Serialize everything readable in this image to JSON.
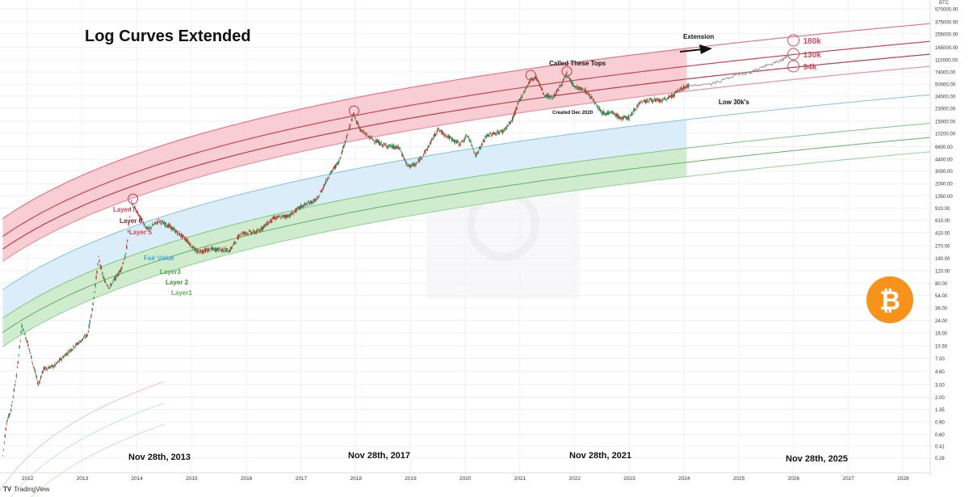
{
  "title": "Log Curves Extended",
  "footer": {
    "brand": "TradingView",
    "logo_glyph": "TV"
  },
  "axis_unit": "BTC",
  "chart_data": {
    "type": "line",
    "title": "Log Curves Extended",
    "y_scale": "log",
    "ylim": [
      0.2,
      600000
    ],
    "xlim": [
      2011.5,
      2028.5
    ],
    "x_ticks": [
      "2012",
      "2013",
      "2014",
      "2015",
      "2016",
      "2017",
      "2018",
      "2019",
      "2020",
      "2021",
      "2022",
      "2023",
      "2024",
      "2025",
      "2026",
      "2027",
      "2028"
    ],
    "y_ticks": [
      "0.28",
      "0.41",
      "0.60",
      "0.90",
      "1.35",
      "2.00",
      "3.00",
      "4.60",
      "7.00",
      "10.50",
      "16.00",
      "24.00",
      "36.00",
      "54.00",
      "80.00",
      "120.00",
      "180.00",
      "270.00",
      "410.00",
      "610.00",
      "910.00",
      "1350.00",
      "2000.00",
      "3000.00",
      "4400.00",
      "6600.00",
      "10200.00",
      "15000.00",
      "23000.00",
      "34000.00",
      "50000.00",
      "74000.00",
      "110000.00",
      "165000.00",
      "255000.00",
      "375000.00",
      "570000.00"
    ],
    "grid": true,
    "bands": [
      {
        "name": "Layer 7",
        "color": "#e04a5a"
      },
      {
        "name": "Layer 6",
        "color": "#c0394b"
      },
      {
        "name": "Layer 5",
        "color": "#e07a88"
      },
      {
        "name": "Fair Value",
        "color": "#3fa7d6"
      },
      {
        "name": "Layer3",
        "color": "#5ab55a"
      },
      {
        "name": "Layer 2",
        "color": "#4aa04a"
      },
      {
        "name": "Layer1",
        "color": "#6cc06c"
      }
    ],
    "price_series": {
      "points": [
        [
          2011.55,
          0.3
        ],
        [
          2011.62,
          0.9
        ],
        [
          2011.7,
          1.3
        ],
        [
          2011.8,
          4
        ],
        [
          2011.9,
          20
        ],
        [
          2012.0,
          12
        ],
        [
          2012.1,
          6
        ],
        [
          2012.2,
          3
        ],
        [
          2012.3,
          5
        ],
        [
          2012.5,
          5.5
        ],
        [
          2012.7,
          8
        ],
        [
          2012.9,
          11
        ],
        [
          2013.1,
          15
        ],
        [
          2013.2,
          40
        ],
        [
          2013.3,
          180
        ],
        [
          2013.4,
          90
        ],
        [
          2013.5,
          70
        ],
        [
          2013.7,
          120
        ],
        [
          2013.8,
          200
        ],
        [
          2013.9,
          1100
        ],
        [
          2014.0,
          800
        ],
        [
          2014.2,
          450
        ],
        [
          2014.4,
          600
        ],
        [
          2014.6,
          500
        ],
        [
          2014.9,
          330
        ],
        [
          2015.1,
          220
        ],
        [
          2015.4,
          240
        ],
        [
          2015.7,
          230
        ],
        [
          2015.9,
          400
        ],
        [
          2016.2,
          420
        ],
        [
          2016.5,
          650
        ],
        [
          2016.8,
          720
        ],
        [
          2017.0,
          950
        ],
        [
          2017.3,
          1200
        ],
        [
          2017.5,
          2500
        ],
        [
          2017.7,
          4200
        ],
        [
          2017.85,
          10000
        ],
        [
          2017.96,
          19000
        ],
        [
          2018.1,
          11000
        ],
        [
          2018.3,
          8500
        ],
        [
          2018.5,
          7000
        ],
        [
          2018.8,
          6300
        ],
        [
          2018.95,
          3500
        ],
        [
          2019.1,
          3700
        ],
        [
          2019.3,
          6000
        ],
        [
          2019.5,
          11500
        ],
        [
          2019.7,
          9000
        ],
        [
          2019.9,
          7200
        ],
        [
          2020.05,
          9500
        ],
        [
          2020.2,
          5000
        ],
        [
          2020.4,
          9500
        ],
        [
          2020.7,
          11000
        ],
        [
          2020.85,
          15000
        ],
        [
          2021.0,
          30000
        ],
        [
          2021.2,
          58000
        ],
        [
          2021.3,
          62000
        ],
        [
          2021.45,
          35000
        ],
        [
          2021.6,
          32000
        ],
        [
          2021.75,
          48000
        ],
        [
          2021.86,
          68000
        ],
        [
          2022.0,
          46000
        ],
        [
          2022.2,
          40000
        ],
        [
          2022.35,
          30000
        ],
        [
          2022.5,
          20000
        ],
        [
          2022.7,
          19500
        ],
        [
          2022.85,
          16500
        ],
        [
          2023.0,
          17000
        ],
        [
          2023.2,
          28000
        ],
        [
          2023.4,
          30000
        ],
        [
          2023.6,
          29000
        ],
        [
          2023.8,
          35000
        ],
        [
          2023.95,
          43000
        ],
        [
          2024.1,
          48000
        ]
      ]
    },
    "projection_series": {
      "points": [
        [
          2024.1,
          48000
        ],
        [
          2024.5,
          50000
        ],
        [
          2024.8,
          60000
        ],
        [
          2025.0,
          70000
        ],
        [
          2025.2,
          72000
        ],
        [
          2025.4,
          85000
        ],
        [
          2025.6,
          95000
        ],
        [
          2025.8,
          110000
        ],
        [
          2025.9,
          125000
        ]
      ]
    },
    "annotations": {
      "called_tops": "Called These Tops",
      "created": "Created Dec 2020",
      "extension": "Extension",
      "low": "Low 30k's",
      "target_180": "180k",
      "target_130": "130k",
      "target_94": "94k",
      "date_2013": "Nov 28th, 2013",
      "date_2017": "Nov 28th, 2017",
      "date_2021": "Nov 28th, 2021",
      "date_2025": "Nov 28th, 2025"
    },
    "bitcoin_logo_glyph": "₿",
    "watermark_glyph": "C"
  }
}
